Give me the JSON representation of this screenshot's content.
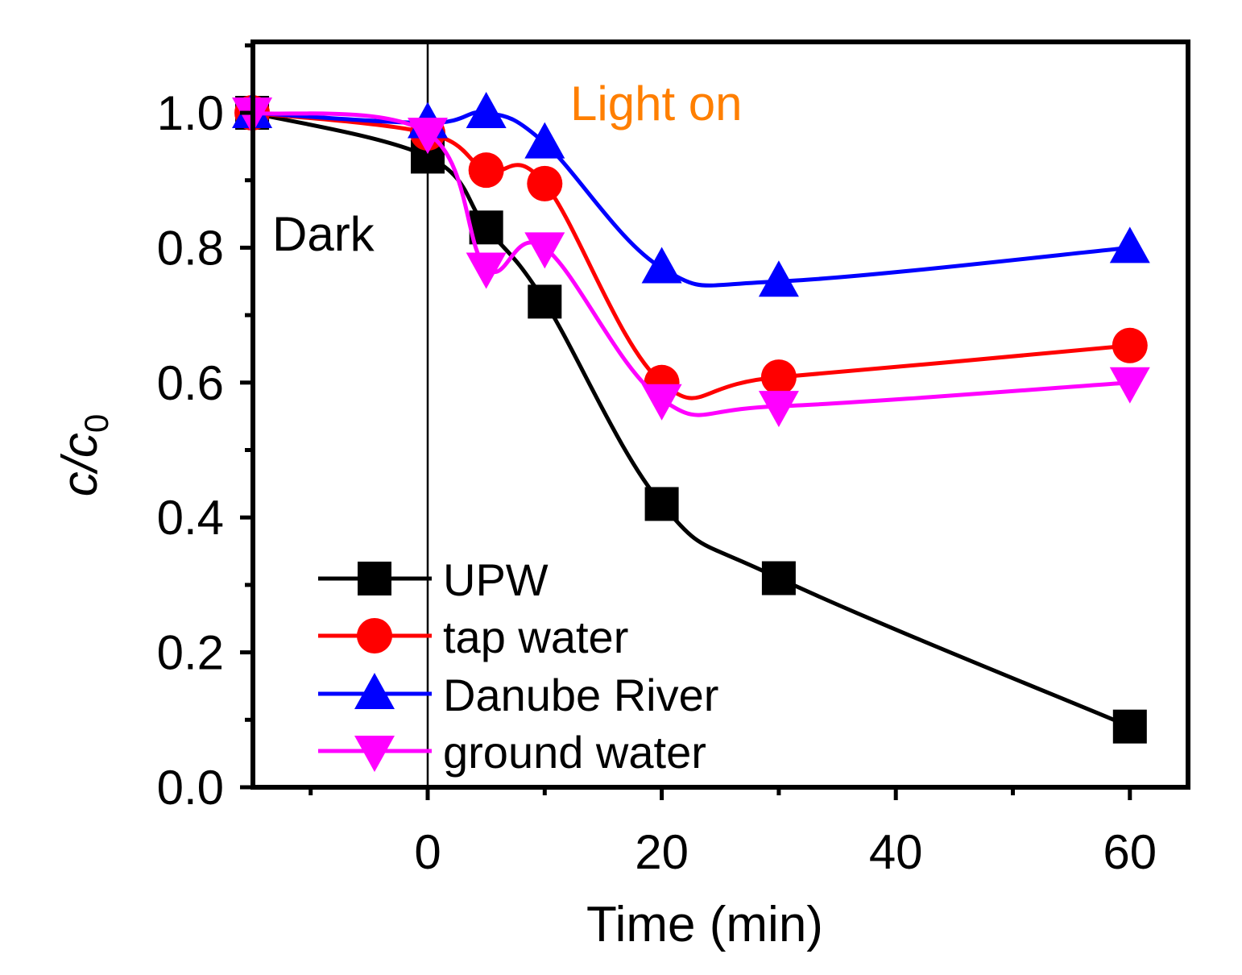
{
  "chart_data": {
    "type": "line",
    "title": "",
    "xlabel": "Time (min)",
    "ylabel_main": "c/c",
    "ylabel_sub": "0",
    "xlim": [
      -15,
      65
    ],
    "ylim": [
      0.0,
      1.1
    ],
    "xticks": [
      0,
      20,
      40,
      60
    ],
    "xticks_minor": [
      -10,
      10,
      30,
      50
    ],
    "xtick_labels": [
      "0",
      "20",
      "40",
      "60"
    ],
    "yticks": [
      0.0,
      0.2,
      0.4,
      0.6,
      0.8,
      1.0
    ],
    "yticks_minor": [
      0.1,
      0.3,
      0.5,
      0.7,
      0.9,
      1.1
    ],
    "ytick_labels": [
      "0.0",
      "0.2",
      "0.4",
      "0.6",
      "0.8",
      "1.0"
    ],
    "annotations": [
      {
        "text": "Dark",
        "color": "#000000"
      },
      {
        "text": "Light on",
        "color": "#ff7f00"
      }
    ],
    "divider_x": 0,
    "legend_position": "bottom-left",
    "series": [
      {
        "name": "UPW",
        "color": "#000000",
        "marker": "square",
        "x": [
          -15,
          0,
          5,
          10,
          20,
          30,
          60
        ],
        "y": [
          1.0,
          0.935,
          0.83,
          0.72,
          0.42,
          0.31,
          0.09
        ]
      },
      {
        "name": "tap water",
        "color": "#ff0000",
        "marker": "circle",
        "x": [
          -15,
          0,
          5,
          10,
          20,
          30,
          60
        ],
        "y": [
          1.0,
          0.97,
          0.915,
          0.895,
          0.6,
          0.608,
          0.655
        ]
      },
      {
        "name": "Danube River",
        "color": "#0000ff",
        "marker": "triangle-up",
        "x": [
          -15,
          0,
          5,
          10,
          20,
          30,
          60
        ],
        "y": [
          1.0,
          0.985,
          1.0,
          0.955,
          0.77,
          0.75,
          0.8
        ]
      },
      {
        "name": "ground water",
        "color": "#ff00ff",
        "marker": "triangle-down",
        "x": [
          -15,
          0,
          5,
          10,
          20,
          30,
          60
        ],
        "y": [
          1.0,
          0.97,
          0.77,
          0.8,
          0.575,
          0.565,
          0.6
        ]
      }
    ]
  }
}
